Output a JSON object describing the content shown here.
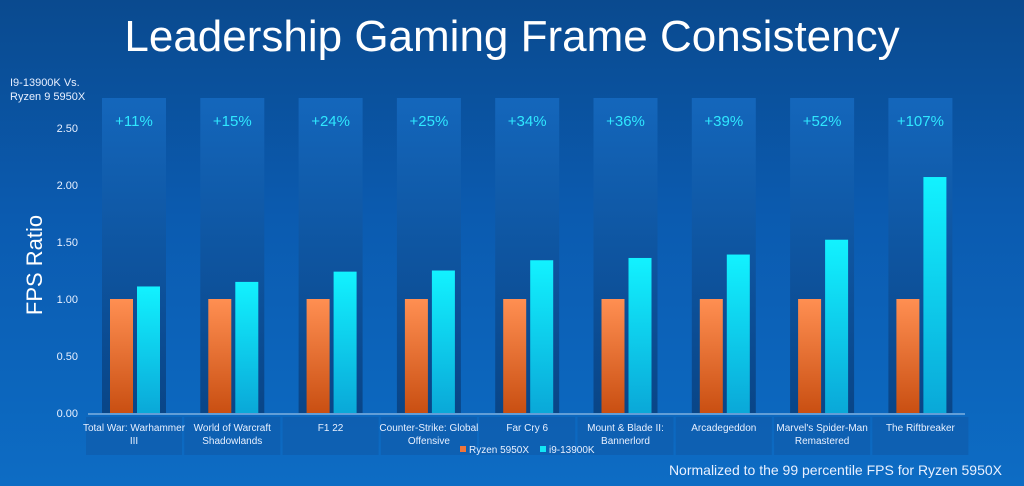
{
  "chart_data": {
    "type": "bar",
    "title": "Leadership Gaming Frame Consistency",
    "subtitle": "I9-13900K Vs. Ryzen 9 5950X",
    "ylabel": "FPS Ratio",
    "xlabel": "",
    "ylim": [
      0,
      2.5
    ],
    "yticks": [
      "0.00",
      "0.50",
      "1.00",
      "1.50",
      "2.00",
      "2.50"
    ],
    "grid": false,
    "legend_position": "bottom",
    "categories": [
      [
        "Total War: Warhammer",
        "III"
      ],
      [
        "World of Warcraft",
        "Shadowlands"
      ],
      [
        "F1 22"
      ],
      [
        "Counter-Strike: Global",
        "Offensive"
      ],
      [
        "Far Cry 6"
      ],
      [
        "Mount & Blade II:",
        "Bannerlord"
      ],
      [
        "Arcadegeddon"
      ],
      [
        "Marvel's Spider-Man",
        "Remastered"
      ],
      [
        "The Riftbreaker"
      ]
    ],
    "series": [
      {
        "name": "Ryzen 5950X",
        "color": "#f0753a",
        "values": [
          1,
          1,
          1,
          1,
          1,
          1,
          1,
          1,
          1
        ]
      },
      {
        "name": "i9-13900K",
        "color": "#12e6f5",
        "values": [
          1.11,
          1.15,
          1.24,
          1.25,
          1.34,
          1.36,
          1.39,
          1.52,
          2.07
        ]
      }
    ],
    "annotations": [
      "+11%",
      "+15%",
      "+24%",
      "+25%",
      "+34%",
      "+36%",
      "+39%",
      "+52%",
      "+107%"
    ],
    "footnote": "Normalized to the 99 percentile FPS for Ryzen 5950X"
  }
}
